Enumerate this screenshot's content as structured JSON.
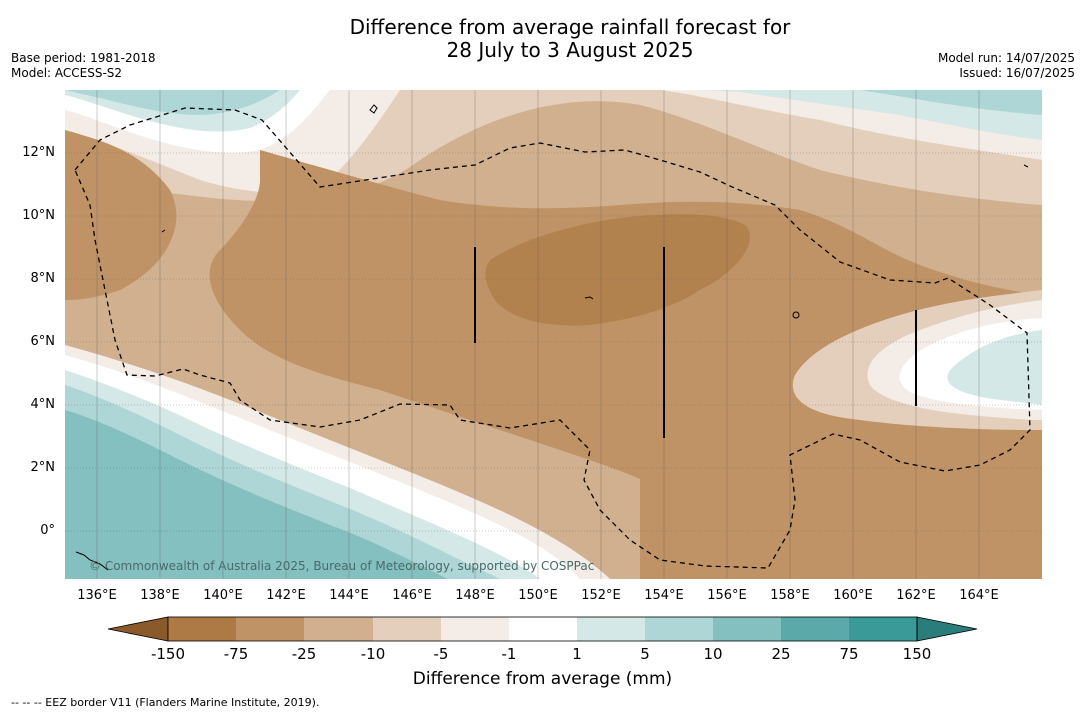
{
  "title_line1": "Difference from average rainfall forecast for",
  "title_line2": "28 July to 3 August 2025",
  "meta_left": {
    "base_period": "Base period: 1981-2018",
    "model": "Model: ACCESS-S2"
  },
  "meta_right": {
    "model_run": "Model run: 14/07/2025",
    "issued": "Issued: 16/07/2025"
  },
  "lat_labels": [
    "12°N",
    "10°N",
    "8°N",
    "6°N",
    "4°N",
    "2°N",
    "0°"
  ],
  "lon_labels": [
    "136°E",
    "138°E",
    "140°E",
    "142°E",
    "144°E",
    "146°E",
    "148°E",
    "150°E",
    "152°E",
    "154°E",
    "156°E",
    "158°E",
    "160°E",
    "162°E",
    "164°E"
  ],
  "colorbar": {
    "ticks": [
      "-150",
      "-75",
      "-25",
      "-10",
      "-5",
      "-1",
      "1",
      "5",
      "10",
      "25",
      "75",
      "150"
    ],
    "colors": [
      "#8b5a2b",
      "#ad7a45",
      "#c09366",
      "#d1b08f",
      "#e4cfbd",
      "#f4ece6",
      "#ffffff",
      "#d4e8e7",
      "#aed6d6",
      "#85c0c0",
      "#5ca9a9",
      "#3a9a97",
      "#2a7d7a"
    ],
    "title": "Difference from average (mm)"
  },
  "copyright": "© Commonwealth of Australia 2025, Bureau of Meteorology, supported by COSPPac",
  "footnote": "-- -- -- EEZ border V11 (Flanders Marine Institute, 2019)."
}
